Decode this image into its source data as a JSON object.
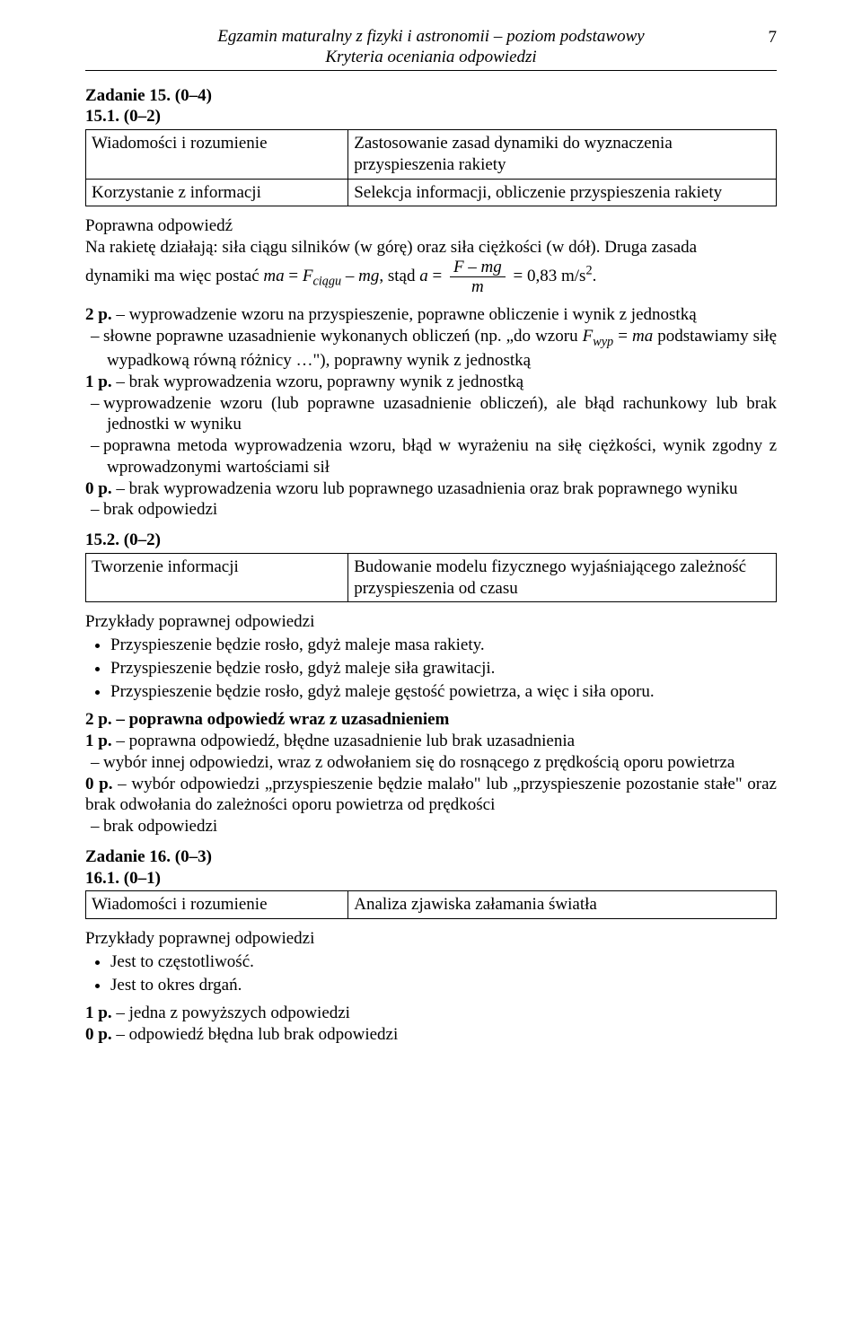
{
  "header": {
    "line1": "Egzamin maturalny z fizyki i astronomii – poziom podstawowy",
    "line2": "Kryteria oceniania odpowiedzi",
    "page_num": "7"
  },
  "task15": {
    "title": "Zadanie 15. (0–4)",
    "p1_title": "15.1. (0–2)",
    "table1": {
      "r1c1": "Wiadomości i rozumienie",
      "r1c2": "Zastosowanie zasad dynamiki do wyznaczenia przyspieszenia rakiety",
      "r2c1": "Korzystanie z informacji",
      "r2c2": "Selekcja informacji, obliczenie przyspieszenia rakiety"
    },
    "answer_label": "Poprawna odpowiedź",
    "answer_l1": "Na rakietę działają: siła ciągu silników (w górę) oraz siła ciężkości (w dół). Druga zasada",
    "answer_l2a": "dynamiki ma więc postać ",
    "eq1_ma": "ma",
    "eq1_eq1": " = ",
    "eq1_F": "F",
    "eq1_ciagu": "ciągu",
    "eq1_minus": " – ",
    "eq1_mg": "mg",
    "eq1_stad": ", stąd ",
    "eq1_a": "a",
    "eq1_eq2": " = ",
    "frac_num_F": "F",
    "frac_num_minus": " – ",
    "frac_num_mg": "mg",
    "frac_den": "m",
    "eq1_res": " = 0,83 m/s",
    "eq1_sq": "2",
    "eq1_dot": ".",
    "pts": {
      "p2_lead": "2 p.",
      "p2_a": " – wyprowadzenie wzoru na przyspieszenie, poprawne obliczenie i wynik z jednostką",
      "p2_b_pre": "słowne poprawne uzasadnienie wykonanych obliczeń (np. „do wzoru ",
      "p2_b_F": "F",
      "p2_b_wyp": "wyp",
      "p2_b_eq": " = ",
      "p2_b_ma": "ma",
      "p2_b_post": " podstawiamy siłę wypadkową równą różnicy …\"), poprawny wynik z jednostką",
      "p1_lead": "1 p.",
      "p1_a": " – brak wyprowadzenia wzoru, poprawny wynik z jednostką",
      "p1_b": "wyprowadzenie wzoru (lub poprawne uzasadnienie obliczeń), ale błąd rachunkowy lub brak jednostki w wyniku",
      "p1_c": "poprawna metoda wyprowadzenia wzoru, błąd w wyrażeniu na siłę ciężkości, wynik zgodny z wprowadzonymi wartościami sił",
      "p0_lead": "0 p.",
      "p0_a": " – brak wyprowadzenia wzoru lub poprawnego uzasadnienia oraz brak poprawnego wyniku",
      "p0_b": "brak odpowiedzi"
    },
    "p2_title": "15.2. (0–2)",
    "table2": {
      "r1c1": "Tworzenie informacji",
      "r1c2": "Budowanie modelu fizycznego wyjaśniającego zależność przyspieszenia od czasu"
    },
    "ex_label": "Przykłady poprawnej odpowiedzi",
    "ex_items": [
      "Przyspieszenie będzie rosło, gdyż maleje masa rakiety.",
      "Przyspieszenie będzie rosło, gdyż maleje siła grawitacji.",
      "Przyspieszenie będzie rosło, gdyż maleje gęstość powietrza, a więc i siła oporu."
    ],
    "pts2": {
      "p2": "2 p. – poprawna odpowiedź wraz z uzasadnieniem",
      "p1_a": "1 p. – poprawna odpowiedź, błędne uzasadnienie lub brak uzasadnienia",
      "p1_b": "wybór innej odpowiedzi, wraz z odwołaniem się do rosnącego z prędkością oporu powietrza",
      "p0_a": "0 p. – wybór odpowiedzi „przyspieszenie będzie malało\" lub „przyspieszenie pozostanie stałe\" oraz brak odwołania do zależności oporu powietrza od prędkości",
      "p0_b": "brak odpowiedzi"
    }
  },
  "task16": {
    "title": "Zadanie 16. (0–3)",
    "p1_title": "16.1. (0–1)",
    "table": {
      "r1c1": "Wiadomości i rozumienie",
      "r1c2": "Analiza zjawiska załamania światła"
    },
    "ex_label": "Przykłady poprawnej odpowiedzi",
    "ex_items": [
      "Jest to częstotliwość.",
      "Jest to okres drgań."
    ],
    "p1": "1 p. – jedna z powyższych odpowiedzi",
    "p0": "0 p. – odpowiedź błędna lub brak odpowiedzi"
  }
}
